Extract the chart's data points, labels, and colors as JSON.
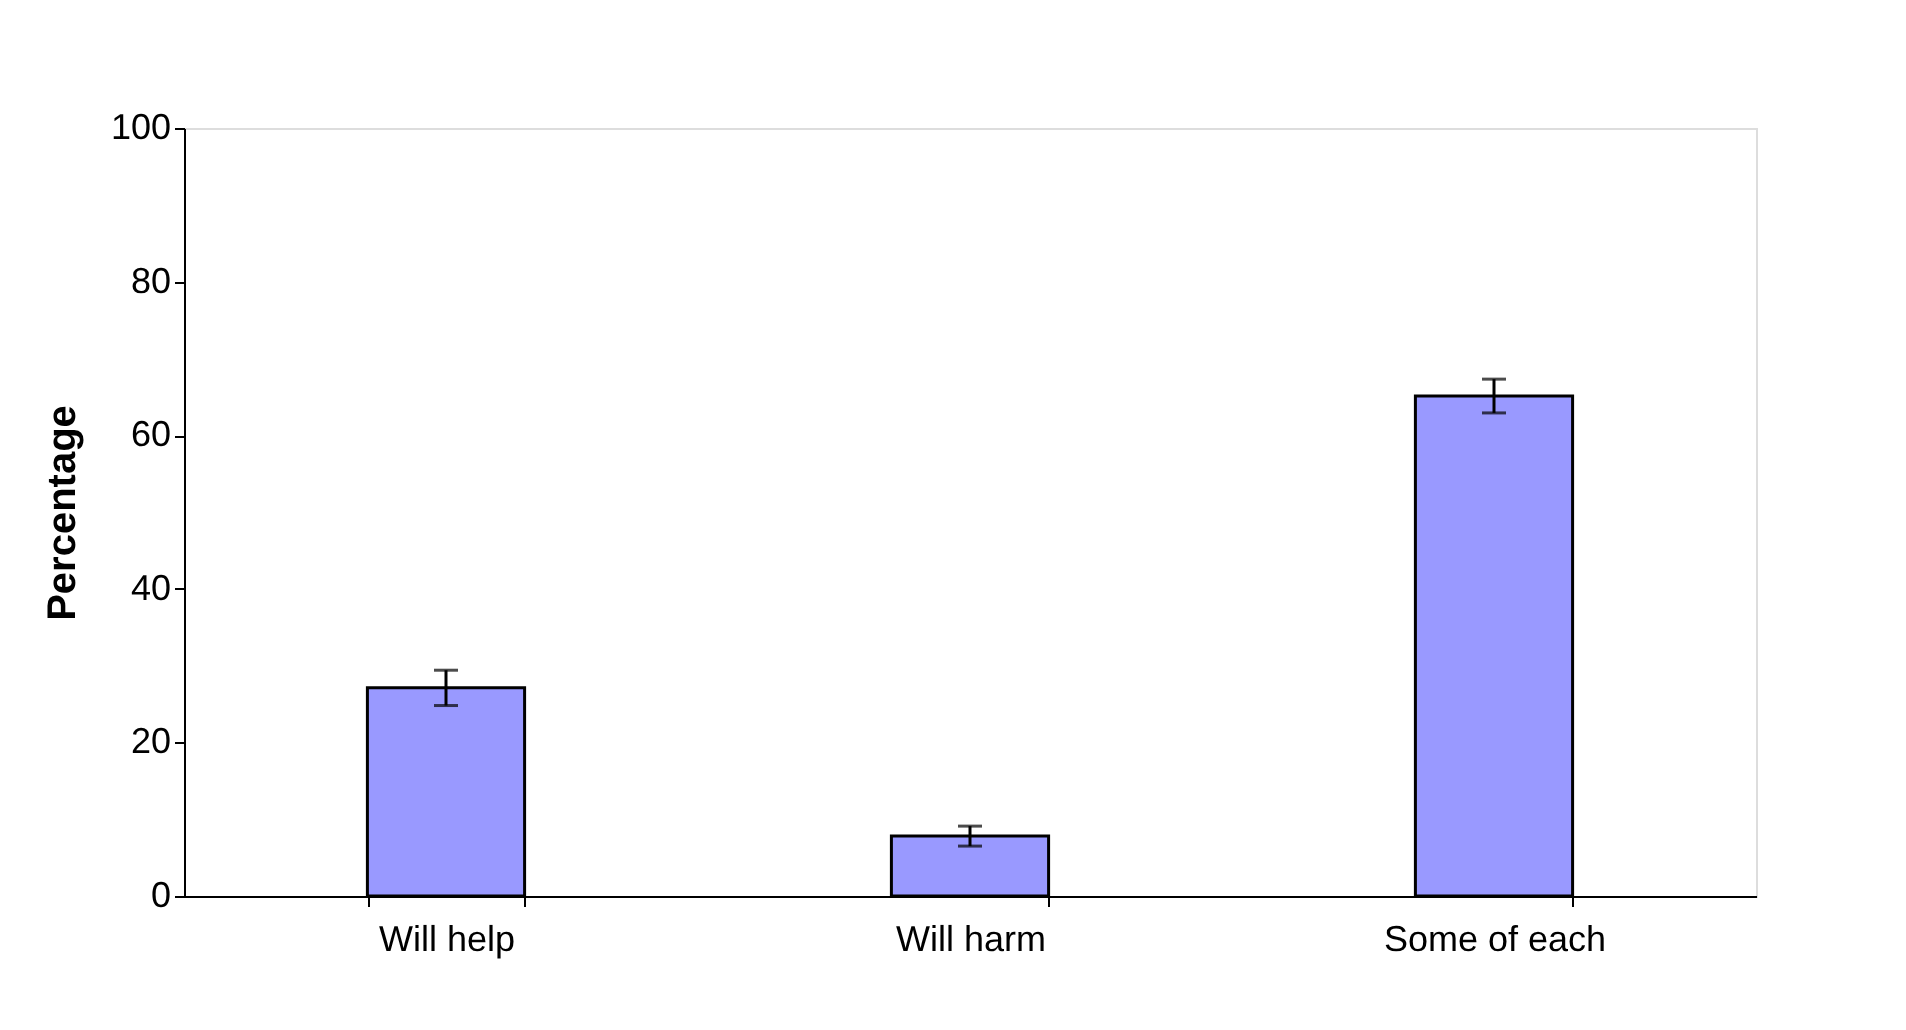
{
  "chart_data": {
    "type": "bar",
    "ylabel": "Percentage",
    "categories": [
      "Will help",
      "Will harm",
      "Some of each"
    ],
    "values": [
      27.1,
      7.8,
      65.1
    ],
    "errors": [
      2.3,
      1.3,
      2.2
    ],
    "color": "#9999ff",
    "ylim": [
      0,
      100
    ],
    "yticks": [
      0,
      20,
      40,
      60,
      80,
      100
    ],
    "grid": false
  }
}
